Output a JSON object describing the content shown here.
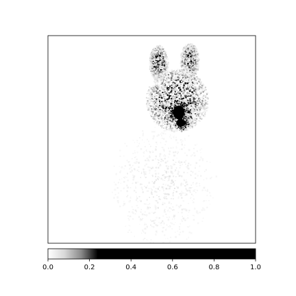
{
  "chart_data": {
    "type": "heatmap",
    "title": "",
    "xlabel": "",
    "ylabel": "",
    "grid": false,
    "colormap": "Greys",
    "colors": {
      "low": "#ffffff",
      "high": "#000000",
      "frame": "#000000"
    },
    "colorbar": {
      "orientation": "horizontal",
      "placement": "bottom",
      "range": [
        0.0,
        1.0
      ],
      "ticks": [
        {
          "value": 0.0,
          "label": "0.0"
        },
        {
          "value": 0.2,
          "label": "0.2"
        },
        {
          "value": 0.4,
          "label": "0.4"
        },
        {
          "value": 0.6,
          "label": "0.6"
        },
        {
          "value": 0.8,
          "label": "0.8"
        },
        {
          "value": 1.0,
          "label": "1.0"
        }
      ],
      "color_stops": [
        {
          "value": 0.0,
          "color": "#ffffff"
        },
        {
          "value": 0.08,
          "color": "#d8d8d8"
        },
        {
          "value": 0.16,
          "color": "#8a8a8a"
        },
        {
          "value": 0.24,
          "color": "#000000"
        },
        {
          "value": 1.0,
          "color": "#000000"
        }
      ]
    },
    "heatmap_regions": [
      {
        "name": "left-ear",
        "cx": 0.53,
        "cy": 0.13,
        "rx": 0.045,
        "ry": 0.085,
        "intensity": 0.35
      },
      {
        "name": "right-ear",
        "cx": 0.68,
        "cy": 0.12,
        "rx": 0.045,
        "ry": 0.085,
        "intensity": 0.35
      },
      {
        "name": "head",
        "cx": 0.62,
        "cy": 0.31,
        "rx": 0.15,
        "ry": 0.15,
        "intensity": 0.38
      },
      {
        "name": "nose",
        "cx": 0.63,
        "cy": 0.37,
        "rx": 0.05,
        "ry": 0.055,
        "intensity": 1.0
      },
      {
        "name": "mouth",
        "cx": 0.64,
        "cy": 0.42,
        "rx": 0.04,
        "ry": 0.03,
        "intensity": 0.85
      },
      {
        "name": "body",
        "cx": 0.55,
        "cy": 0.72,
        "rx": 0.26,
        "ry": 0.3,
        "intensity": 0.05
      }
    ]
  }
}
